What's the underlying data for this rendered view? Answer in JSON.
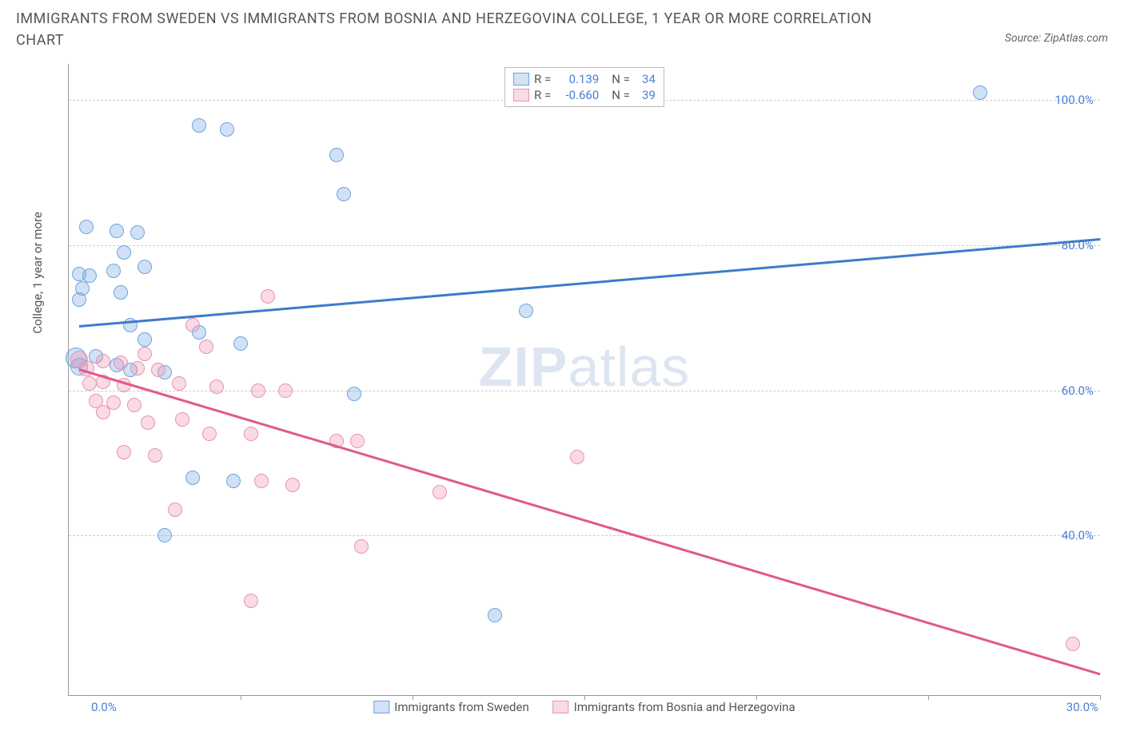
{
  "title": "IMMIGRANTS FROM SWEDEN VS IMMIGRANTS FROM BOSNIA AND HERZEGOVINA COLLEGE, 1 YEAR OR MORE CORRELATION CHART",
  "source": "Source: ZipAtlas.com",
  "watermark_bold": "ZIP",
  "watermark_light": "atlas",
  "chart": {
    "type": "scatter",
    "y_axis_title": "College, 1 year or more",
    "xlim": [
      0,
      30
    ],
    "ylim": [
      18,
      105
    ],
    "x_ticks": [
      0,
      5,
      10,
      15,
      20,
      25,
      30
    ],
    "y_ticks": [
      40,
      60,
      80,
      100
    ],
    "y_tick_labels": [
      "40.0%",
      "60.0%",
      "80.0%",
      "100.0%"
    ],
    "x_label_min": "0.0%",
    "x_label_max": "30.0%",
    "grid_color": "#cccccc",
    "background_color": "#ffffff",
    "tick_label_color": "#4a7fd8",
    "series": [
      {
        "name": "Immigrants from Sweden",
        "key": "sweden",
        "fill": "rgba(120,170,230,0.35)",
        "stroke": "#6fa3de",
        "stroke_solid": "#3d7cc9",
        "swatch_fill": "#d3e3f5",
        "swatch_border": "#6fa3de",
        "R": "0.139",
        "N": "34",
        "trend": {
          "x1": 0.3,
          "y1": 69,
          "x2": 30,
          "y2": 81
        },
        "points": [
          {
            "x": 26.5,
            "y": 101,
            "r": 8
          },
          {
            "x": 3.8,
            "y": 96.5,
            "r": 8
          },
          {
            "x": 4.6,
            "y": 96,
            "r": 8
          },
          {
            "x": 7.8,
            "y": 92.5,
            "r": 8
          },
          {
            "x": 8.0,
            "y": 87,
            "r": 8
          },
          {
            "x": 0.5,
            "y": 82.5,
            "r": 8
          },
          {
            "x": 1.4,
            "y": 82,
            "r": 8
          },
          {
            "x": 2.0,
            "y": 81.8,
            "r": 8
          },
          {
            "x": 1.6,
            "y": 79,
            "r": 8
          },
          {
            "x": 0.3,
            "y": 76,
            "r": 8
          },
          {
            "x": 0.6,
            "y": 75.8,
            "r": 8
          },
          {
            "x": 1.3,
            "y": 76.5,
            "r": 8
          },
          {
            "x": 2.2,
            "y": 77,
            "r": 8
          },
          {
            "x": 0.4,
            "y": 74,
            "r": 8
          },
          {
            "x": 1.5,
            "y": 73.5,
            "r": 8
          },
          {
            "x": 0.3,
            "y": 72.5,
            "r": 8
          },
          {
            "x": 13.3,
            "y": 71,
            "r": 8
          },
          {
            "x": 1.8,
            "y": 69,
            "r": 8
          },
          {
            "x": 3.8,
            "y": 68,
            "r": 8
          },
          {
            "x": 2.2,
            "y": 67,
            "r": 8
          },
          {
            "x": 5.0,
            "y": 66.5,
            "r": 8
          },
          {
            "x": 0.2,
            "y": 64.5,
            "r": 12
          },
          {
            "x": 0.8,
            "y": 64.7,
            "r": 8
          },
          {
            "x": 0.3,
            "y": 63.3,
            "r": 10
          },
          {
            "x": 1.4,
            "y": 63.5,
            "r": 8
          },
          {
            "x": 1.8,
            "y": 62.8,
            "r": 8
          },
          {
            "x": 2.8,
            "y": 62.5,
            "r": 8
          },
          {
            "x": 8.3,
            "y": 59.5,
            "r": 8
          },
          {
            "x": 3.6,
            "y": 48,
            "r": 8
          },
          {
            "x": 4.8,
            "y": 47.5,
            "r": 8
          },
          {
            "x": 2.8,
            "y": 40,
            "r": 8
          },
          {
            "x": 12.4,
            "y": 29,
            "r": 8
          }
        ]
      },
      {
        "name": "Immigrants from Bosnia and Herzegovina",
        "key": "bosnia",
        "fill": "rgba(240,150,180,0.35)",
        "stroke": "#e693b0",
        "stroke_solid": "#e05a87",
        "swatch_fill": "#f7dbe5",
        "swatch_border": "#e693b0",
        "R": "-0.660",
        "N": "39",
        "trend": {
          "x1": 0.3,
          "y1": 63,
          "x2": 30,
          "y2": 21
        },
        "points": [
          {
            "x": 5.8,
            "y": 73,
            "r": 8
          },
          {
            "x": 3.6,
            "y": 69,
            "r": 8
          },
          {
            "x": 4.0,
            "y": 66,
            "r": 8
          },
          {
            "x": 2.2,
            "y": 65,
            "r": 8
          },
          {
            "x": 0.3,
            "y": 64.3,
            "r": 10
          },
          {
            "x": 1.0,
            "y": 64,
            "r": 8
          },
          {
            "x": 1.5,
            "y": 63.8,
            "r": 8
          },
          {
            "x": 0.5,
            "y": 63,
            "r": 9
          },
          {
            "x": 2.0,
            "y": 63,
            "r": 8
          },
          {
            "x": 2.6,
            "y": 62.8,
            "r": 8
          },
          {
            "x": 0.6,
            "y": 61,
            "r": 8
          },
          {
            "x": 1.0,
            "y": 61.2,
            "r": 8
          },
          {
            "x": 1.6,
            "y": 60.7,
            "r": 8
          },
          {
            "x": 3.2,
            "y": 61,
            "r": 8
          },
          {
            "x": 4.3,
            "y": 60.5,
            "r": 8
          },
          {
            "x": 5.5,
            "y": 60,
            "r": 8
          },
          {
            "x": 6.3,
            "y": 60,
            "r": 8
          },
          {
            "x": 0.8,
            "y": 58.5,
            "r": 8
          },
          {
            "x": 1.3,
            "y": 58.3,
            "r": 8
          },
          {
            "x": 1.9,
            "y": 58,
            "r": 8
          },
          {
            "x": 1.0,
            "y": 57,
            "r": 8
          },
          {
            "x": 2.3,
            "y": 55.5,
            "r": 8
          },
          {
            "x": 3.3,
            "y": 56,
            "r": 8
          },
          {
            "x": 4.1,
            "y": 54,
            "r": 8
          },
          {
            "x": 5.3,
            "y": 54,
            "r": 8
          },
          {
            "x": 7.8,
            "y": 53,
            "r": 8
          },
          {
            "x": 8.4,
            "y": 53,
            "r": 8
          },
          {
            "x": 14.8,
            "y": 50.8,
            "r": 8
          },
          {
            "x": 1.6,
            "y": 51.5,
            "r": 8
          },
          {
            "x": 2.5,
            "y": 51,
            "r": 8
          },
          {
            "x": 5.6,
            "y": 47.5,
            "r": 8
          },
          {
            "x": 6.5,
            "y": 47,
            "r": 8
          },
          {
            "x": 10.8,
            "y": 46,
            "r": 8
          },
          {
            "x": 3.1,
            "y": 43.5,
            "r": 8
          },
          {
            "x": 8.5,
            "y": 38.5,
            "r": 8
          },
          {
            "x": 5.3,
            "y": 31,
            "r": 8
          },
          {
            "x": 29.2,
            "y": 25,
            "r": 8
          }
        ]
      }
    ],
    "legend_labels": {
      "R": "R =",
      "N": "N ="
    }
  }
}
